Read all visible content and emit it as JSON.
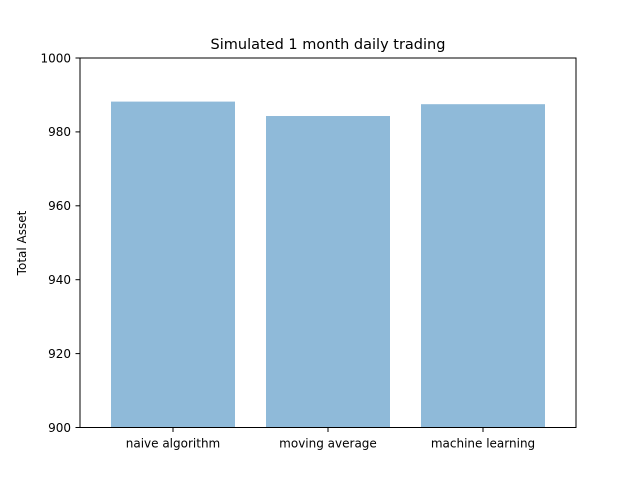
{
  "chart_data": {
    "type": "bar",
    "title": "Simulated 1 month daily trading",
    "xlabel": "",
    "ylabel": "Total Asset",
    "categories": [
      "naive algorithm",
      "moving average",
      "machine learning"
    ],
    "values": [
      988.2,
      984.3,
      987.5
    ],
    "ylim": [
      900,
      1000
    ],
    "yticks": [
      900,
      920,
      940,
      960,
      980,
      1000
    ],
    "bar_color": "#8fbad9",
    "grid": false,
    "legend": "none"
  }
}
